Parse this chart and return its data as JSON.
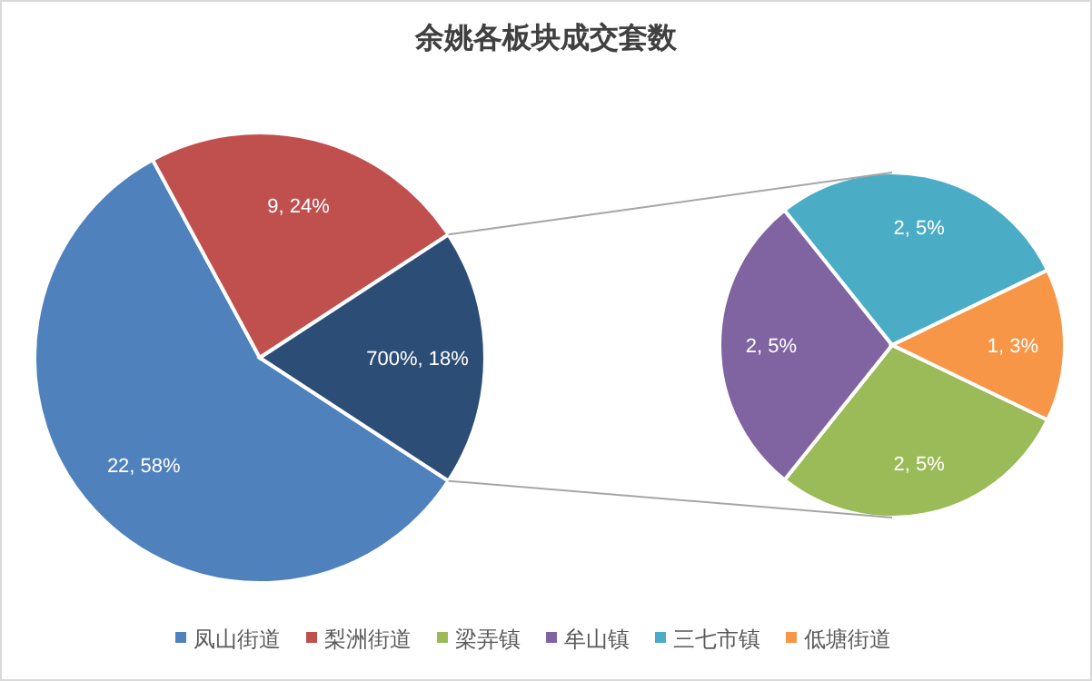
{
  "chart_data": [
    {
      "type": "pie",
      "title": "余姚各板块成交套数",
      "categories": [
        "凤山街道",
        "梨洲街道",
        null
      ],
      "values": [
        22,
        9,
        7
      ],
      "colors": [
        "#4f81bd",
        "#c0504d",
        "#2c4d75"
      ],
      "value_labels": [
        "22, 58%",
        "9, 24%",
        "700%, 18%"
      ],
      "legend": "bottom"
    },
    {
      "type": "pie",
      "categories": [
        "梁弄镇",
        "牟山镇",
        "三七市镇",
        "低塘街道"
      ],
      "values": [
        2,
        2,
        2,
        1
      ],
      "colors": [
        "#9bbb59",
        "#8064a2",
        "#4bacc6",
        "#f79646"
      ],
      "value_labels": [
        "2, 5%",
        "2, 5%",
        "2, 5%",
        "1, 3%"
      ],
      "legend": "bottom"
    }
  ]
}
